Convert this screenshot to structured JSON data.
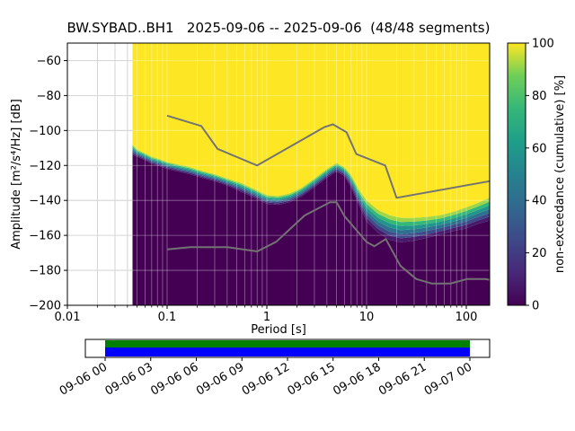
{
  "title": "BW.SYBAD..BH1   2025-09-06 -- 2025-09-06  (48/48 segments)",
  "axes": {
    "xlabel": "Period [s]",
    "ylabel": "Amplitude [m²/s⁴/Hz] [dB]",
    "xscale": "log",
    "xlim_log": [
      -2,
      2.2342
    ],
    "ylim": [
      -200,
      -50
    ],
    "grid": true,
    "x_ticks": [
      {
        "value": 0.01,
        "label": "0.01"
      },
      {
        "value": 0.1,
        "label": "0.1"
      },
      {
        "value": 1,
        "label": "1"
      },
      {
        "value": 10,
        "label": "10"
      },
      {
        "value": 100,
        "label": "100"
      }
    ],
    "y_ticks": [
      {
        "value": -60,
        "label": "−60"
      },
      {
        "value": -80,
        "label": "−80"
      },
      {
        "value": -100,
        "label": "−100"
      },
      {
        "value": -120,
        "label": "−120"
      },
      {
        "value": -140,
        "label": "−140"
      },
      {
        "value": -160,
        "label": "−160"
      },
      {
        "value": -180,
        "label": "−180"
      },
      {
        "value": -200,
        "label": "−200"
      }
    ]
  },
  "colorbar": {
    "label": "non-exceedance (cumulative) [%]",
    "ticks": [
      {
        "value": 0,
        "label": "0"
      },
      {
        "value": 20,
        "label": "20"
      },
      {
        "value": 40,
        "label": "40"
      },
      {
        "value": 60,
        "label": "60"
      },
      {
        "value": 80,
        "label": "80"
      },
      {
        "value": 100,
        "label": "100"
      }
    ],
    "colormap_name": "viridis",
    "colormap_stops": [
      [
        0,
        "#440154"
      ],
      [
        0.125,
        "#482878"
      ],
      [
        0.25,
        "#3e4989"
      ],
      [
        0.375,
        "#31688e"
      ],
      [
        0.5,
        "#26828e"
      ],
      [
        0.625,
        "#1f9e89"
      ],
      [
        0.75,
        "#35b779"
      ],
      [
        0.875,
        "#6ece58"
      ],
      [
        1,
        "#fde725"
      ]
    ]
  },
  "chart_data": {
    "type": "heatmap",
    "subtype": "ppsd-cumulative-spectrogram",
    "title": "BW.SYBAD..BH1  2025-09-06 -- 2025-09-06  (48/48 segments)",
    "xlabel": "Period [s]",
    "ylabel": "Amplitude [m²/s⁴/Hz] [dB]",
    "zlabel": "non-exceedance (cumulative) [%]",
    "segments_used": 48,
    "segments_total": 48,
    "x_is_log": true,
    "period_range_s": [
      0.045,
      171
    ],
    "cumulative_boundary": {
      "note": "db_0pct: below this amplitude the cumulative value is 0% (dark purple); db_100pct: above this it is 100% (yellow); viridis gradient in between",
      "periods_s": [
        0.045,
        0.05,
        0.06,
        0.07,
        0.085,
        0.1,
        0.13,
        0.17,
        0.22,
        0.3,
        0.4,
        0.55,
        0.75,
        1.0,
        1.3,
        1.7,
        2.2,
        3.0,
        4.0,
        5.0,
        6.0,
        7.0,
        8.5,
        10,
        13,
        17,
        22,
        30,
        40,
        55,
        75,
        100,
        130,
        171
      ],
      "db_0pct": [
        -114,
        -115,
        -117,
        -119,
        -120.5,
        -122,
        -123.5,
        -125,
        -127,
        -129,
        -131.5,
        -135,
        -138.5,
        -142,
        -142.5,
        -141,
        -138,
        -132.5,
        -127,
        -123.5,
        -126,
        -132.5,
        -143.5,
        -152,
        -158.5,
        -162.5,
        -164,
        -163,
        -161.5,
        -159.5,
        -157.5,
        -156,
        -153.5,
        -151.5
      ],
      "db_100pct": [
        -108,
        -111,
        -113,
        -115,
        -116.5,
        -118,
        -119.5,
        -121,
        -123,
        -125,
        -127.5,
        -130,
        -133.5,
        -137,
        -137.5,
        -136,
        -133,
        -127.5,
        -122,
        -118.5,
        -121,
        -125.5,
        -134.5,
        -140,
        -145.5,
        -148.5,
        -150,
        -150,
        -149.5,
        -148.5,
        -146.5,
        -144,
        -141.5,
        -138.5
      ]
    },
    "noise_models": {
      "color": "#737373",
      "nhnm": {
        "name": "Peterson New High Noise Model",
        "periods_s": [
          0.1,
          0.22,
          0.32,
          0.8,
          3.8,
          4.6,
          6.3,
          7.9,
          15.4,
          20,
          171
        ],
        "db": [
          -91.5,
          -97.4,
          -110.5,
          -120,
          -98,
          -96.5,
          -101,
          -113.5,
          -120,
          -138.5,
          -129
        ]
      },
      "nlnm": {
        "name": "Peterson New Low Noise Model",
        "periods_s": [
          0.1,
          0.17,
          0.4,
          0.8,
          1.24,
          2.4,
          4.3,
          5,
          6,
          10,
          12,
          15.6,
          21.9,
          31.6,
          45,
          70,
          101,
          154,
          171
        ],
        "db": [
          -168,
          -166.7,
          -166.7,
          -169.2,
          -163.7,
          -148.6,
          -141.1,
          -141.1,
          -149,
          -163.8,
          -166.2,
          -162.1,
          -177.5,
          -185,
          -187.5,
          -187.5,
          -185,
          -185,
          -185.4
        ]
      }
    }
  },
  "timeline": {
    "tick_labels": [
      "09-06 00",
      "09-06 03",
      "09-06 06",
      "09-06 09",
      "09-06 12",
      "09-06 15",
      "09-06 18",
      "09-06 21",
      "09-07 00"
    ],
    "coverage_color": "#008000",
    "segments_color": "#0000ff"
  }
}
